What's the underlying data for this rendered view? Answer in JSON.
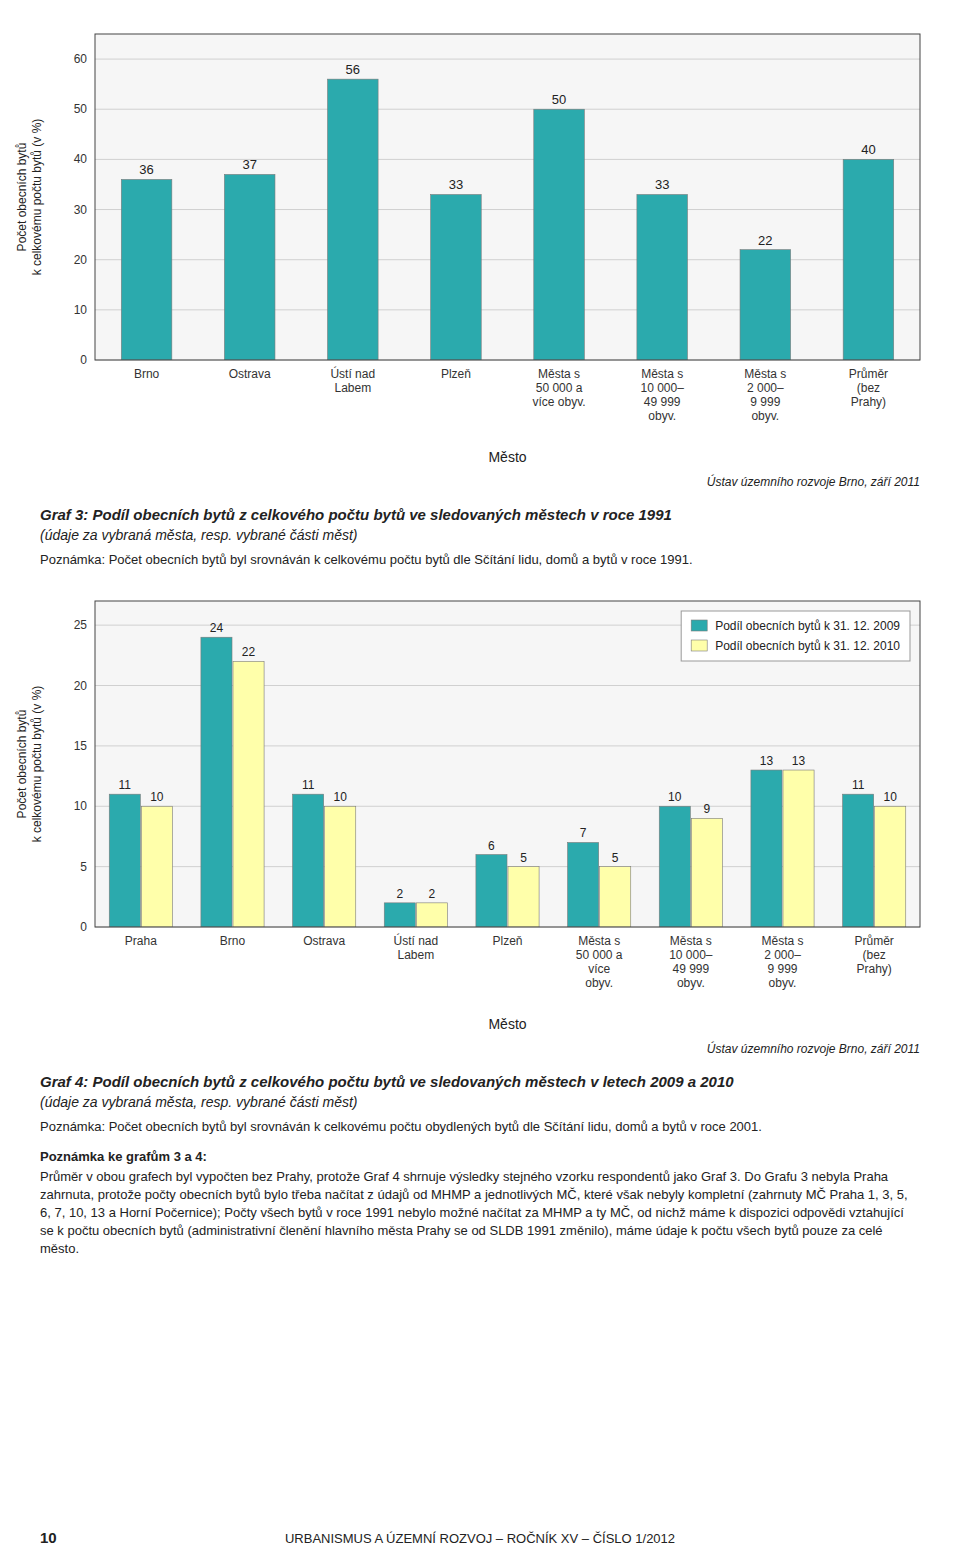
{
  "chart_data": [
    {
      "type": "bar",
      "title": "Graf 3: Podíl obecních bytů z celkového počtu bytů ve sledovaných městech v roce 1991",
      "subtitle": "(údaje za vybraná města, resp. vybrané části měst)",
      "categories": [
        "Brno",
        "Ostrava",
        "Ústí nad\nLabem",
        "Plzeň",
        "Města s\n50 000 a\nvíce obyv.",
        "Města s\n10 000–\n49 999\nobyv.",
        "Města s\n2 000–\n9 999\nobyv.",
        "Průměr\n(bez\nPrahy)"
      ],
      "values": [
        36,
        37,
        56,
        33,
        50,
        33,
        22,
        40
      ],
      "color": "#2BAAAD",
      "xlabel": "Město",
      "ylabel": "Počet obecních bytů\nk celkovému počtu bytů (v %)",
      "ylim": [
        0,
        65
      ],
      "yticks": [
        0,
        10,
        20,
        30,
        40,
        50,
        60
      ],
      "grid": true,
      "data_labels": true,
      "annotations": [
        "Ústav územního rozvoje Brno, září 2011",
        "Poznámka: Počet obecních bytů byl srovnáván k celkovému počtu bytů dle Sčítání lidu, domů a bytů v roce 1991."
      ]
    },
    {
      "type": "bar",
      "title": "Graf 4: Podíl obecních bytů z celkového počtu bytů ve sledovaných městech v letech 2009 a 2010",
      "subtitle": "(údaje za vybraná města, resp. vybrané části měst)",
      "categories": [
        "Praha",
        "Brno",
        "Ostrava",
        "Ústí nad\nLabem",
        "Plzeň",
        "Města s\n50 000 a\nvíce\nobyv.",
        "Města s\n10 000–\n49 999\nobyv.",
        "Města s\n2 000–\n9 999\nobyv.",
        "Průměr\n(bez\nPrahy)"
      ],
      "series": [
        {
          "name": "Podíl obecních bytů k 31. 12. 2009",
          "color": "#2BAAAD",
          "values": [
            11,
            24,
            11,
            2,
            6,
            7,
            10,
            13,
            11
          ]
        },
        {
          "name": "Podíl obecních bytů k 31. 12. 2010",
          "color": "#FFFFAA",
          "values": [
            10,
            22,
            10,
            2,
            5,
            5,
            9,
            13,
            10
          ]
        }
      ],
      "xlabel": "Město",
      "ylabel": "Počet obecních bytů\nk celkovému počtu bytů (v %)",
      "ylim": [
        0,
        27
      ],
      "yticks": [
        0,
        5,
        10,
        15,
        20,
        25
      ],
      "grid": true,
      "data_labels": true,
      "legend": "upper right",
      "annotations": [
        "Ústav územního rozvoje Brno, září 2011",
        "Poznámka: Počet obecních bytů byl srovnáván k celkovému počtu obydlených bytů dle Sčítání lidu, domů a bytů v roce 2001.",
        "Poznámka ke grafům 3 a 4:",
        "Průměr v obou grafech byl vypočten bez Prahy, protože Graf 4 shrnuje výsledky stejného vzorku respondentů jako Graf 3. Do Grafu 3 nebyla Praha zahrnuta, protože počty obecních bytů bylo třeba načítat z údajů od MHMP a jednotlivých MČ, které však nebyly kompletní (zahrnuty MČ Praha 1, 3, 5, 6, 7, 10, 13 a Horní Počernice); Počty všech bytů v roce 1991 nebylo možné načítat za MHMP a ty MČ, od nichž máme k dispozici odpovědi vztahující se k počtu obecních bytů (administrativní členění hlavního města Prahy se od SLDB 1991 změnilo), máme údaje k počtu všech bytů pouze za celé město.",
        "10",
        "URBANISMUS A ÚZEMNÍ ROZVOJ – ROČNÍK XV – ČÍSLO 1/2012"
      ]
    }
  ]
}
